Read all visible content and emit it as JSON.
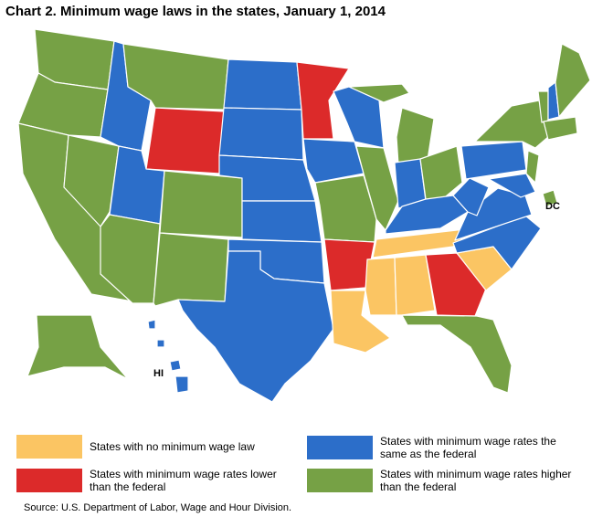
{
  "title": "Chart 2. Minimum wage laws in the states, January 1, 2014",
  "map_labels": {
    "dc": "DC",
    "hi": "HI"
  },
  "legend": [
    {
      "name": "States with no minimum wage law",
      "color": "#fbc563"
    },
    {
      "name": "States with minimum wage rates lower than the federal",
      "color": "#dc2a2a"
    },
    {
      "name": "States with minimum wage rates the same as the federal",
      "color": "#2c6ec9"
    },
    {
      "name": "States with minimum wage rates higher than the federal",
      "color": "#76a145"
    }
  ],
  "source": "Source: U.S. Department of Labor, Wage and Hour Division."
}
